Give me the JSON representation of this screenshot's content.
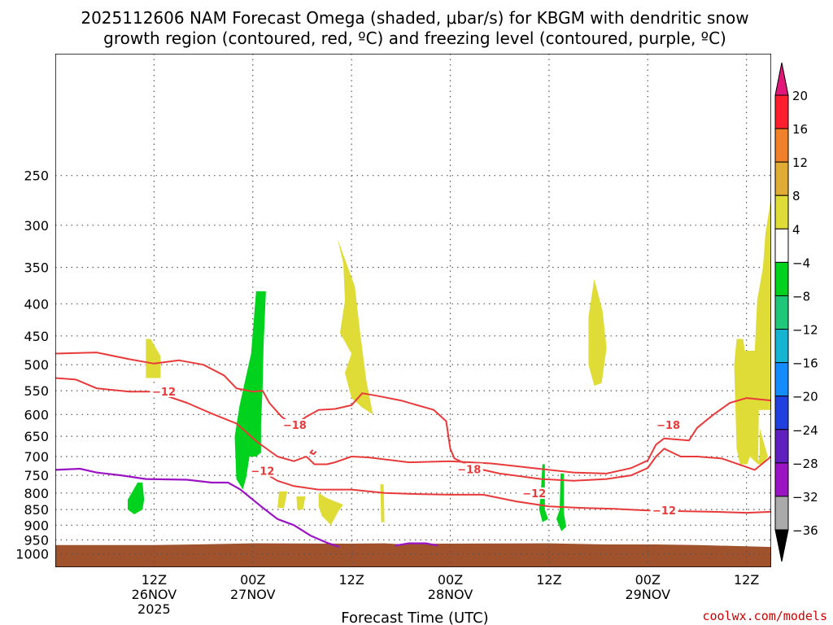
{
  "title": {
    "line1": "2025112606 NAM Forecast Omega (shaded, μbar/s) for KBGM with dendritic snow",
    "line2": "growth region (contoured, red, ºC) and freezing level (contoured, purple, ºC)"
  },
  "credit": "coolwx.com/models",
  "chart_data": {
    "type": "heatmap",
    "xlabel": "Forecast Time (UTC)",
    "ylabel": "",
    "x_range_hours": [
      -12,
      75
    ],
    "y_scale": "log",
    "y_range": [
      1050,
      160
    ],
    "y_ticks": [
      250,
      300,
      350,
      400,
      450,
      500,
      550,
      600,
      650,
      700,
      750,
      800,
      850,
      900,
      950,
      1000
    ],
    "grid": true,
    "x_ticks": [
      {
        "h": 0,
        "lines": [
          "12Z",
          "26NOV",
          "2025"
        ]
      },
      {
        "h": 12,
        "lines": [
          "00Z",
          "27NOV"
        ]
      },
      {
        "h": 24,
        "lines": [
          "12Z"
        ]
      },
      {
        "h": 36,
        "lines": [
          "00Z",
          "28NOV"
        ]
      },
      {
        "h": 48,
        "lines": [
          "12Z"
        ]
      },
      {
        "h": 60,
        "lines": [
          "00Z",
          "29NOV"
        ]
      },
      {
        "h": 72,
        "lines": [
          "12Z"
        ]
      }
    ],
    "colorbar": {
      "ticks": [
        "20",
        "16",
        "12",
        "8",
        "4",
        "−4",
        "−8",
        "−12",
        "−16",
        "−20",
        "−24",
        "−28",
        "−32",
        "−36"
      ],
      "colors": [
        "#ff1e2d",
        "#f0802a",
        "#e0ac36",
        "#e0dc37",
        "#ffffff",
        "#00d21e",
        "#1ec878",
        "#14b4d2",
        "#148cff",
        "#2040e0",
        "#6020c0",
        "#9a14c4",
        "#aaaaaa"
      ],
      "top_color": "#e01678",
      "bottom_color": "#000000"
    },
    "ground_color": "#a0522d",
    "omega_regions": [
      {
        "value": "4",
        "color": "#e0dc37",
        "points": [
          [
            -1.0,
            455
          ],
          [
            -0.4,
            455
          ],
          [
            0.8,
            485
          ],
          [
            0.8,
            525
          ],
          [
            -1.0,
            525
          ]
        ]
      },
      {
        "value": "4",
        "color": "#e0dc37",
        "points": [
          [
            22.3,
            315
          ],
          [
            23.0,
            345
          ],
          [
            23.2,
            395
          ],
          [
            22.6,
            445
          ],
          [
            24.0,
            480
          ],
          [
            23.2,
            515
          ],
          [
            24.0,
            565
          ],
          [
            25.3,
            585
          ],
          [
            26.6,
            600
          ],
          [
            25.8,
            530
          ],
          [
            25.0,
            440
          ],
          [
            24.4,
            375
          ]
        ]
      },
      {
        "value": "4",
        "color": "#e0dc37",
        "points": [
          [
            15.2,
            795
          ],
          [
            16.2,
            795
          ],
          [
            15.8,
            845
          ],
          [
            15.0,
            845
          ]
        ]
      },
      {
        "value": "4",
        "color": "#e0dc37",
        "points": [
          [
            17.3,
            810
          ],
          [
            18.4,
            810
          ],
          [
            18.1,
            850
          ],
          [
            17.4,
            850
          ]
        ]
      },
      {
        "value": "4",
        "color": "#e0dc37",
        "points": [
          [
            20.0,
            800
          ],
          [
            21.0,
            815
          ],
          [
            22.0,
            825
          ],
          [
            23.0,
            835
          ],
          [
            22.4,
            855
          ],
          [
            21.5,
            900
          ],
          [
            20.4,
            870
          ],
          [
            20.0,
            840
          ]
        ]
      },
      {
        "value": "4",
        "color": "#e0dc37",
        "points": [
          [
            27.5,
            775
          ],
          [
            27.9,
            775
          ],
          [
            28.0,
            890
          ],
          [
            27.6,
            890
          ]
        ]
      },
      {
        "value": "4",
        "color": "#e0dc37",
        "points": [
          [
            53.5,
            365
          ],
          [
            54.5,
            410
          ],
          [
            55.0,
            470
          ],
          [
            54.4,
            535
          ],
          [
            53.5,
            540
          ],
          [
            52.8,
            500
          ],
          [
            52.8,
            420
          ]
        ]
      },
      {
        "value": "4",
        "color": "#e0dc37",
        "points": [
          [
            70.8,
            455
          ],
          [
            71.6,
            455
          ],
          [
            71.8,
            475
          ],
          [
            73.0,
            475
          ],
          [
            73.3,
            395
          ],
          [
            74.0,
            350
          ],
          [
            75,
            350
          ],
          [
            75,
            590
          ],
          [
            73.5,
            590
          ],
          [
            73.4,
            720
          ],
          [
            72.4,
            700
          ],
          [
            72.1,
            720
          ],
          [
            71.2,
            720
          ],
          [
            70.8,
            680
          ],
          [
            70.5,
            500
          ]
        ]
      },
      {
        "value": "4",
        "color": "#e0dc37",
        "points": [
          [
            73.6,
            630
          ],
          [
            74.6,
            700
          ],
          [
            74.0,
            720
          ],
          [
            73.3,
            720
          ],
          [
            73.6,
            700
          ]
        ]
      },
      {
        "value": "4",
        "color": "#e0dc37",
        "points": [
          [
            75,
            270
          ],
          [
            75,
            405
          ],
          [
            74.2,
            405
          ],
          [
            74.0,
            350
          ],
          [
            74.3,
            310
          ]
        ]
      },
      {
        "value": "-4",
        "color": "#00d21e",
        "points": [
          [
            12.4,
            382
          ],
          [
            13.6,
            382
          ],
          [
            13.3,
            470
          ],
          [
            13.2,
            540
          ],
          [
            13.0,
            620
          ],
          [
            13.0,
            690
          ],
          [
            12.4,
            700
          ],
          [
            11.6,
            700
          ],
          [
            11.2,
            755
          ],
          [
            10.8,
            790
          ],
          [
            10.0,
            760
          ],
          [
            9.8,
            650
          ],
          [
            10.4,
            580
          ],
          [
            11.0,
            535
          ],
          [
            11.8,
            480
          ]
        ]
      },
      {
        "value": "-4",
        "color": "#00d21e",
        "points": [
          [
            -2.0,
            770
          ],
          [
            -1.4,
            770
          ],
          [
            -1.2,
            820
          ],
          [
            -1.4,
            850
          ],
          [
            -2.4,
            865
          ],
          [
            -3.2,
            850
          ],
          [
            -3.2,
            820
          ]
        ]
      },
      {
        "value": "-4",
        "color": "#00d21e",
        "points": [
          [
            47.2,
            720
          ],
          [
            47.5,
            720
          ],
          [
            47.5,
            850
          ],
          [
            47.9,
            880
          ],
          [
            47.2,
            890
          ],
          [
            46.8,
            850
          ],
          [
            47.0,
            800
          ]
        ]
      },
      {
        "value": "-4",
        "color": "#00d21e",
        "points": [
          [
            49.4,
            745
          ],
          [
            49.8,
            745
          ],
          [
            49.8,
            860
          ],
          [
            50.1,
            905
          ],
          [
            49.5,
            920
          ],
          [
            48.9,
            880
          ],
          [
            49.3,
            850
          ]
        ]
      }
    ],
    "dgz_contours": [
      {
        "level": -12,
        "points": [
          [
            -12,
            525
          ],
          [
            -9.5,
            528
          ],
          [
            -7,
            545
          ],
          [
            -3,
            552
          ],
          [
            0,
            552
          ],
          [
            4,
            575
          ],
          [
            7,
            598
          ],
          [
            10,
            620
          ],
          [
            12.5,
            663
          ],
          [
            15,
            700
          ],
          [
            17,
            712
          ],
          [
            18.5,
            700
          ],
          [
            19.5,
            720
          ],
          [
            21,
            720
          ],
          [
            22,
            715
          ],
          [
            24,
            700
          ],
          [
            26,
            702
          ],
          [
            31,
            715
          ],
          [
            36,
            712
          ],
          [
            41,
            718
          ],
          [
            46,
            730
          ],
          [
            51,
            742
          ],
          [
            55,
            745
          ],
          [
            58,
            730
          ],
          [
            60,
            710
          ],
          [
            61,
            670
          ],
          [
            62,
            655
          ],
          [
            65,
            660
          ],
          [
            66,
            630
          ],
          [
            68,
            600
          ],
          [
            70,
            575
          ],
          [
            72,
            565
          ],
          [
            75,
            570
          ]
        ]
      },
      {
        "level": -18,
        "points": [
          [
            -12,
            480
          ],
          [
            -7,
            478
          ],
          [
            -3,
            490
          ],
          [
            0,
            498
          ],
          [
            3,
            492
          ],
          [
            6,
            500
          ],
          [
            8.5,
            520
          ],
          [
            10,
            545
          ],
          [
            12,
            552
          ],
          [
            13.2,
            550
          ],
          [
            14,
            575
          ],
          [
            15.5,
            605
          ],
          [
            17,
            625
          ],
          [
            18.5,
            605
          ],
          [
            20,
            590
          ],
          [
            22,
            588
          ],
          [
            24,
            580
          ],
          [
            25.3,
            555
          ],
          [
            27,
            560
          ],
          [
            30,
            570
          ],
          [
            34,
            590
          ],
          [
            35.5,
            615
          ],
          [
            36,
            680
          ],
          [
            36.5,
            705
          ],
          [
            39,
            730
          ],
          [
            42,
            745
          ],
          [
            47,
            760
          ],
          [
            51,
            765
          ],
          [
            55,
            760
          ],
          [
            58,
            750
          ],
          [
            60,
            730
          ],
          [
            61,
            700
          ],
          [
            62,
            680
          ],
          [
            64,
            700
          ],
          [
            66,
            700
          ],
          [
            69,
            705
          ],
          [
            73,
            735
          ],
          [
            75,
            700
          ]
        ]
      },
      {
        "level": -12,
        "points": [
          [
            13,
            738
          ],
          [
            15,
            765
          ],
          [
            17,
            780
          ],
          [
            20,
            790
          ],
          [
            24,
            790
          ],
          [
            28,
            800
          ],
          [
            32,
            803
          ],
          [
            36,
            805
          ],
          [
            40,
            805
          ],
          [
            44,
            825
          ],
          [
            48,
            840
          ],
          [
            52,
            845
          ],
          [
            56,
            848
          ],
          [
            60,
            853
          ],
          [
            64,
            855
          ],
          [
            68,
            857
          ],
          [
            72,
            860
          ],
          [
            75,
            857
          ]
        ]
      },
      {
        "level": -18,
        "points": [
          [
            19.3,
            683
          ],
          [
            19.0,
            690
          ],
          [
            19.4,
            694
          ],
          [
            19.7,
            687
          ]
        ]
      }
    ],
    "dgz_labels": [
      {
        "text": "−12",
        "h": 1.2,
        "p": 553
      },
      {
        "text": "−18",
        "h": 17.1,
        "p": 625
      },
      {
        "text": "−12",
        "h": 13.2,
        "p": 740
      },
      {
        "text": "−18",
        "h": 38.3,
        "p": 735
      },
      {
        "text": "−12",
        "h": 46.2,
        "p": 803
      },
      {
        "text": "−18",
        "h": 62.5,
        "p": 625
      },
      {
        "text": "−12",
        "h": 62.0,
        "p": 855
      }
    ],
    "freezing_contours": [
      {
        "level": 0,
        "points": [
          [
            -12,
            735
          ],
          [
            -9,
            732
          ],
          [
            -7,
            742
          ],
          [
            -4,
            750
          ],
          [
            -1,
            760
          ],
          [
            4,
            762
          ],
          [
            7,
            770
          ],
          [
            9,
            770
          ],
          [
            10.5,
            790
          ],
          [
            13,
            840
          ],
          [
            15,
            880
          ],
          [
            17,
            900
          ],
          [
            19,
            935
          ],
          [
            21,
            960
          ],
          [
            22.5,
            975
          ]
        ]
      },
      {
        "level": 0,
        "points": [
          [
            29.3,
            970
          ],
          [
            31,
            962
          ],
          [
            33,
            962
          ],
          [
            34.5,
            970
          ]
        ]
      }
    ],
    "ground": {
      "points": [
        [
          -12,
          968
        ],
        [
          0,
          968
        ],
        [
          5,
          966
        ],
        [
          12,
          962
        ],
        [
          24,
          963
        ],
        [
          28,
          962
        ],
        [
          30,
          965
        ],
        [
          35,
          963
        ],
        [
          48,
          962
        ],
        [
          55,
          966
        ],
        [
          61,
          966
        ],
        [
          66,
          968
        ],
        [
          75,
          975
        ]
      ]
    }
  }
}
